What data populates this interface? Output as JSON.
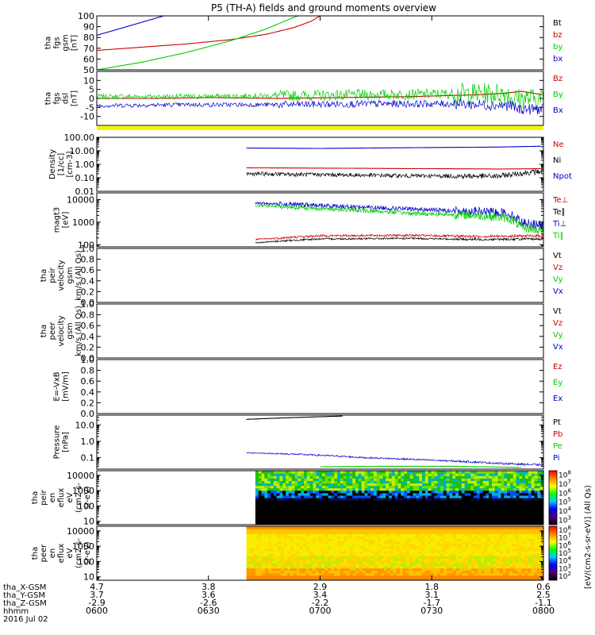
{
  "title": "P5 (TH-A) fields and ground moments overview",
  "chart_data": [
    {
      "panel": "fgs-gsm",
      "type": "line",
      "ylabel": [
        "tha",
        "fgs",
        "gsm",
        "[nT]"
      ],
      "ylim": [
        50,
        100
      ],
      "yticks": [
        50,
        60,
        70,
        80,
        90,
        100
      ],
      "series": [
        {
          "name": "Bt",
          "color": "#000000",
          "points": []
        },
        {
          "name": "bz",
          "color": "#cc0000",
          "points": [
            [
              0,
              68
            ],
            [
              0.1,
              71
            ],
            [
              0.2,
              74
            ],
            [
              0.3,
              78
            ],
            [
              0.38,
              83
            ],
            [
              0.44,
              89
            ],
            [
              0.48,
              95
            ],
            [
              0.5,
              100
            ]
          ]
        },
        {
          "name": "by",
          "color": "#00cc00",
          "points": [
            [
              0,
              50
            ],
            [
              0.1,
              57
            ],
            [
              0.2,
              66
            ],
            [
              0.3,
              77
            ],
            [
              0.38,
              88
            ],
            [
              0.42,
              95
            ],
            [
              0.45,
              100
            ]
          ]
        },
        {
          "name": "bx",
          "color": "#0000cc",
          "points": [
            [
              0,
              82
            ],
            [
              0.05,
              88
            ],
            [
              0.1,
              94
            ],
            [
              0.15,
              100
            ]
          ]
        }
      ]
    },
    {
      "panel": "fgs-dsl",
      "type": "line",
      "ylabel": [
        "tha",
        "fgs",
        "dsl",
        "[nT]"
      ],
      "ylim": [
        -15,
        15
      ],
      "yticks": [
        -10,
        -5,
        0,
        5,
        10
      ],
      "flag_bar": {
        "color": "#f5f500"
      },
      "series": [
        {
          "name": "Bz",
          "color": "#cc0000",
          "points": [
            [
              0,
              0
            ],
            [
              0.15,
              0
            ],
            [
              0.25,
              0.5
            ],
            [
              0.4,
              0
            ],
            [
              0.55,
              0.5
            ],
            [
              0.7,
              1
            ],
            [
              0.85,
              2
            ],
            [
              0.92,
              3
            ],
            [
              0.95,
              4
            ],
            [
              1.0,
              2
            ]
          ]
        },
        {
          "name": "By",
          "color": "#00cc00",
          "noise": [
            1.5,
            3,
            6
          ],
          "points": [
            [
              0,
              1
            ],
            [
              0.2,
              1
            ],
            [
              0.4,
              1.5
            ],
            [
              0.6,
              2
            ],
            [
              0.8,
              2.5
            ],
            [
              0.92,
              3
            ],
            [
              0.93,
              0
            ],
            [
              1.0,
              0
            ]
          ]
        },
        {
          "name": "Bx",
          "color": "#0000cc",
          "noise": [
            1.2,
            2,
            3
          ],
          "points": [
            [
              0,
              -4
            ],
            [
              0.2,
              -3.5
            ],
            [
              0.4,
              -3.5
            ],
            [
              0.6,
              -3
            ],
            [
              0.8,
              -3
            ],
            [
              0.93,
              -4
            ],
            [
              0.94,
              -6
            ],
            [
              1.0,
              -6
            ]
          ]
        }
      ]
    },
    {
      "panel": "density",
      "type": "line",
      "scale": "log",
      "ylabel": [
        "Density",
        "[1/cc]",
        "[cm-3]"
      ],
      "ylim": [
        0.01,
        100
      ],
      "yticks": [
        0.01,
        0.1,
        1,
        10,
        100
      ],
      "yticklabels": [
        "0.01",
        "0.10",
        "1.00",
        "10.00",
        "100.00"
      ],
      "series": [
        {
          "name": "Ne",
          "color": "#cc0000",
          "points": [
            [
              0.335,
              0.55
            ],
            [
              0.5,
              0.52
            ],
            [
              0.7,
              0.48
            ],
            [
              0.9,
              0.45
            ],
            [
              1.0,
              0.47
            ]
          ]
        },
        {
          "name": "Ni",
          "color": "#000000",
          "noise": [
            0.15,
            0.15,
            0.2
          ],
          "points": [
            [
              0.335,
              0.2
            ],
            [
              0.5,
              0.17
            ],
            [
              0.7,
              0.14
            ],
            [
              0.9,
              0.13
            ],
            [
              1.0,
              0.3
            ]
          ]
        },
        {
          "name": "Npot",
          "color": "#0000cc",
          "points": [
            [
              0.335,
              16
            ],
            [
              0.5,
              15
            ],
            [
              0.7,
              17
            ],
            [
              0.9,
              19
            ],
            [
              1.0,
              22
            ]
          ]
        }
      ]
    },
    {
      "panel": "temperature",
      "type": "line",
      "scale": "log",
      "ylabel": [
        "magt3",
        "[eV]"
      ],
      "ylim": [
        80,
        20000
      ],
      "yticks": [
        100,
        1000,
        10000
      ],
      "yticklabels": [
        "100",
        "1000",
        "10000"
      ],
      "series": [
        {
          "name": "Te⊥",
          "color": "#cc0000",
          "noise": [
            0.04,
            0.05,
            0.06
          ],
          "points": [
            [
              0.355,
              170
            ],
            [
              0.4,
              190
            ],
            [
              0.5,
              250
            ],
            [
              0.7,
              260
            ],
            [
              0.85,
              230
            ],
            [
              1.0,
              250
            ]
          ]
        },
        {
          "name": "Te∥",
          "color": "#000000",
          "noise": [
            0.03,
            0.04,
            0.05
          ],
          "points": [
            [
              0.355,
              120
            ],
            [
              0.4,
              140
            ],
            [
              0.5,
              180
            ],
            [
              0.7,
              190
            ],
            [
              0.85,
              170
            ],
            [
              1.0,
              180
            ]
          ]
        },
        {
          "name": "Ti⊥",
          "color": "#0000cc",
          "noise": [
            0.06,
            0.1,
            0.2
          ],
          "points": [
            [
              0.355,
              7000
            ],
            [
              0.5,
              5500
            ],
            [
              0.7,
              3800
            ],
            [
              0.85,
              3000
            ],
            [
              0.92,
              2500
            ],
            [
              0.95,
              1000
            ],
            [
              1.0,
              700
            ]
          ]
        },
        {
          "name": "Ti∥",
          "color": "#00cc00",
          "noise": [
            0.06,
            0.1,
            0.2
          ],
          "points": [
            [
              0.355,
              5500
            ],
            [
              0.5,
              4000
            ],
            [
              0.7,
              2500
            ],
            [
              0.85,
              2000
            ],
            [
              0.92,
              1500
            ],
            [
              0.95,
              600
            ],
            [
              1.0,
              400
            ]
          ]
        }
      ]
    },
    {
      "panel": "peir-velocity",
      "type": "line",
      "ylabel": [
        "tha",
        "peir",
        "velocity",
        "gsm",
        "km/s (All Qs)"
      ],
      "ylim": [
        0,
        1
      ],
      "yticks": [
        0.0,
        0.2,
        0.4,
        0.6,
        0.8,
        1.0
      ],
      "yticklabels": [
        "0.0",
        "0.2",
        "0.4",
        "0.6",
        "0.8",
        "1.0"
      ],
      "series": [
        {
          "name": "Vt",
          "color": "#000000",
          "points": []
        },
        {
          "name": "Vz",
          "color": "#cc0000",
          "points": []
        },
        {
          "name": "Vy",
          "color": "#00cc00",
          "points": []
        },
        {
          "name": "Vx",
          "color": "#0000cc",
          "points": []
        }
      ]
    },
    {
      "panel": "peer-velocity",
      "type": "line",
      "ylabel": [
        "tha",
        "peer",
        "velocity",
        "gsm",
        "km/s (All Qs)"
      ],
      "ylim": [
        0,
        1
      ],
      "yticks": [
        0.0,
        0.2,
        0.4,
        0.6,
        0.8,
        1.0
      ],
      "yticklabels": [
        "0.0",
        "0.2",
        "0.4",
        "0.6",
        "0.8",
        "1.0"
      ],
      "series": [
        {
          "name": "Vt",
          "color": "#000000",
          "points": []
        },
        {
          "name": "Vz",
          "color": "#cc0000",
          "points": []
        },
        {
          "name": "Vy",
          "color": "#00cc00",
          "points": []
        },
        {
          "name": "Vx",
          "color": "#0000cc",
          "points": []
        }
      ]
    },
    {
      "panel": "efield",
      "type": "line",
      "ylabel": [
        "E=-VxB",
        "[mV/m]"
      ],
      "ylim": [
        0,
        1
      ],
      "yticks": [
        0.0,
        0.2,
        0.4,
        0.6,
        0.8,
        1.0
      ],
      "yticklabels": [
        "0.0",
        "0.2",
        "0.4",
        "0.6",
        "0.8",
        "1.0"
      ],
      "series": [
        {
          "name": "Ez",
          "color": "#cc0000",
          "points": []
        },
        {
          "name": "Ey",
          "color": "#00cc00",
          "points": []
        },
        {
          "name": "Ex",
          "color": "#0000cc",
          "points": []
        }
      ]
    },
    {
      "panel": "pressure",
      "type": "line",
      "scale": "log",
      "ylabel": [
        "Pressure",
        "[nPa]"
      ],
      "ylim": [
        0.02,
        40
      ],
      "yticks": [
        0.1,
        1,
        10
      ],
      "yticklabels": [
        "0.1",
        "1.0",
        "10.0"
      ],
      "series": [
        {
          "name": "Pt",
          "color": "#000000",
          "points": [
            [
              0.335,
              22
            ],
            [
              0.4,
              26
            ],
            [
              0.5,
              32
            ],
            [
              0.55,
              35
            ]
          ]
        },
        {
          "name": "Pb",
          "color": "#cc0000",
          "points": []
        },
        {
          "name": "Pe",
          "color": "#00cc00",
          "points": [
            [
              0.5,
              0.028
            ],
            [
              0.65,
              0.03
            ],
            [
              0.8,
              0.03
            ],
            [
              0.95,
              0.025
            ]
          ]
        },
        {
          "name": "Pi",
          "color": "#0000cc",
          "noise": [
            0.03,
            0.05,
            0.06
          ],
          "points": [
            [
              0.335,
              0.2
            ],
            [
              0.45,
              0.16
            ],
            [
              0.6,
              0.1
            ],
            [
              0.75,
              0.07
            ],
            [
              0.9,
              0.045
            ],
            [
              1.0,
              0.035
            ]
          ]
        }
      ]
    },
    {
      "panel": "peir-en-eflux",
      "type": "heatmap",
      "scale": "log",
      "ylabel": [
        "tha",
        "peir",
        "en",
        "eflux",
        "eV",
        "(cm2-s-",
        "sr-eV)"
      ],
      "ylim": [
        6,
        20000
      ],
      "yticks": [
        10,
        100,
        1000,
        10000
      ],
      "yticklabels": [
        "10",
        "100",
        "1000",
        "10000"
      ],
      "data_start": 0.355,
      "colorbar_ticks": [
        "10^3",
        "10^4",
        "10^5",
        "10^6",
        "10^7",
        "10^8"
      ]
    },
    {
      "panel": "peer-en-eflux",
      "type": "heatmap",
      "scale": "log",
      "ylabel": [
        "tha",
        "peer",
        "en",
        "eflux",
        "eV",
        "(cm2-s-",
        "sr-eV)"
      ],
      "ylim": [
        6,
        20000
      ],
      "yticks": [
        10,
        100,
        1000,
        10000
      ],
      "yticklabels": [
        "10",
        "100",
        "1000",
        "10000"
      ],
      "data_start": 0.335,
      "colorbar_ticks": [
        "10^2",
        "10^3",
        "10^4",
        "10^5",
        "10^6",
        "10^7",
        "10^8"
      ]
    }
  ],
  "colorbar_label": "[eV/(cm2-s-sr-eV)] (All Qs)",
  "xaxis": {
    "rows": [
      {
        "label": "tha_X-GSM",
        "values": [
          "4.7",
          "3.8",
          "2.9",
          "1.8",
          "0.6"
        ]
      },
      {
        "label": "tha_Y-GSM",
        "values": [
          "3.7",
          "3.6",
          "3.4",
          "3.1",
          "2.5"
        ]
      },
      {
        "label": "tha_Z-GSM",
        "values": [
          "-2.9",
          "-2.6",
          "-2.2",
          "-1.7",
          "-1.1"
        ]
      },
      {
        "label": "hhmm",
        "values": [
          "0600",
          "0630",
          "0700",
          "0730",
          "0800"
        ]
      }
    ],
    "date": "2016 Jul 02"
  }
}
